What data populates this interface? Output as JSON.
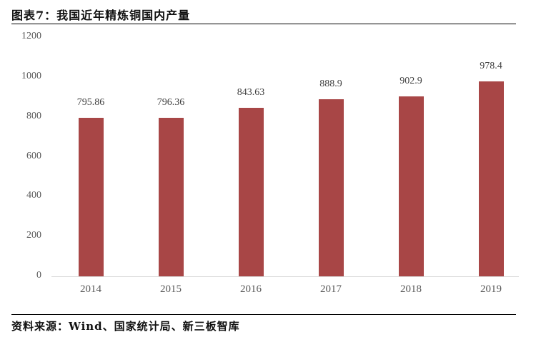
{
  "header": {
    "title": "图表7：我国近年精炼铜国内产量"
  },
  "footer": {
    "source": "资料来源：Wind、国家统计局、新三板智库"
  },
  "colors": {
    "bar": "#A84646",
    "axis": "#D9D9D9",
    "tick_text": "#595959",
    "label_text": "#404040"
  },
  "chart_data": {
    "type": "bar",
    "title": "我国近年精炼铜国内产量",
    "xlabel": "",
    "ylabel": "",
    "categories": [
      "2014",
      "2015",
      "2016",
      "2017",
      "2018",
      "2019"
    ],
    "values": [
      795.86,
      796.36,
      843.63,
      888.9,
      902.9,
      978.4
    ],
    "value_labels": [
      "795.86",
      "796.36",
      "843.63",
      "888.9",
      "902.9",
      "978.4"
    ],
    "ylim": [
      0,
      1200
    ],
    "yticks": [
      "0",
      "200",
      "400",
      "600",
      "800",
      "1000",
      "1200"
    ],
    "grid": false,
    "legend": null,
    "source": "资料来源：Wind、国家统计局、新三板智库"
  }
}
